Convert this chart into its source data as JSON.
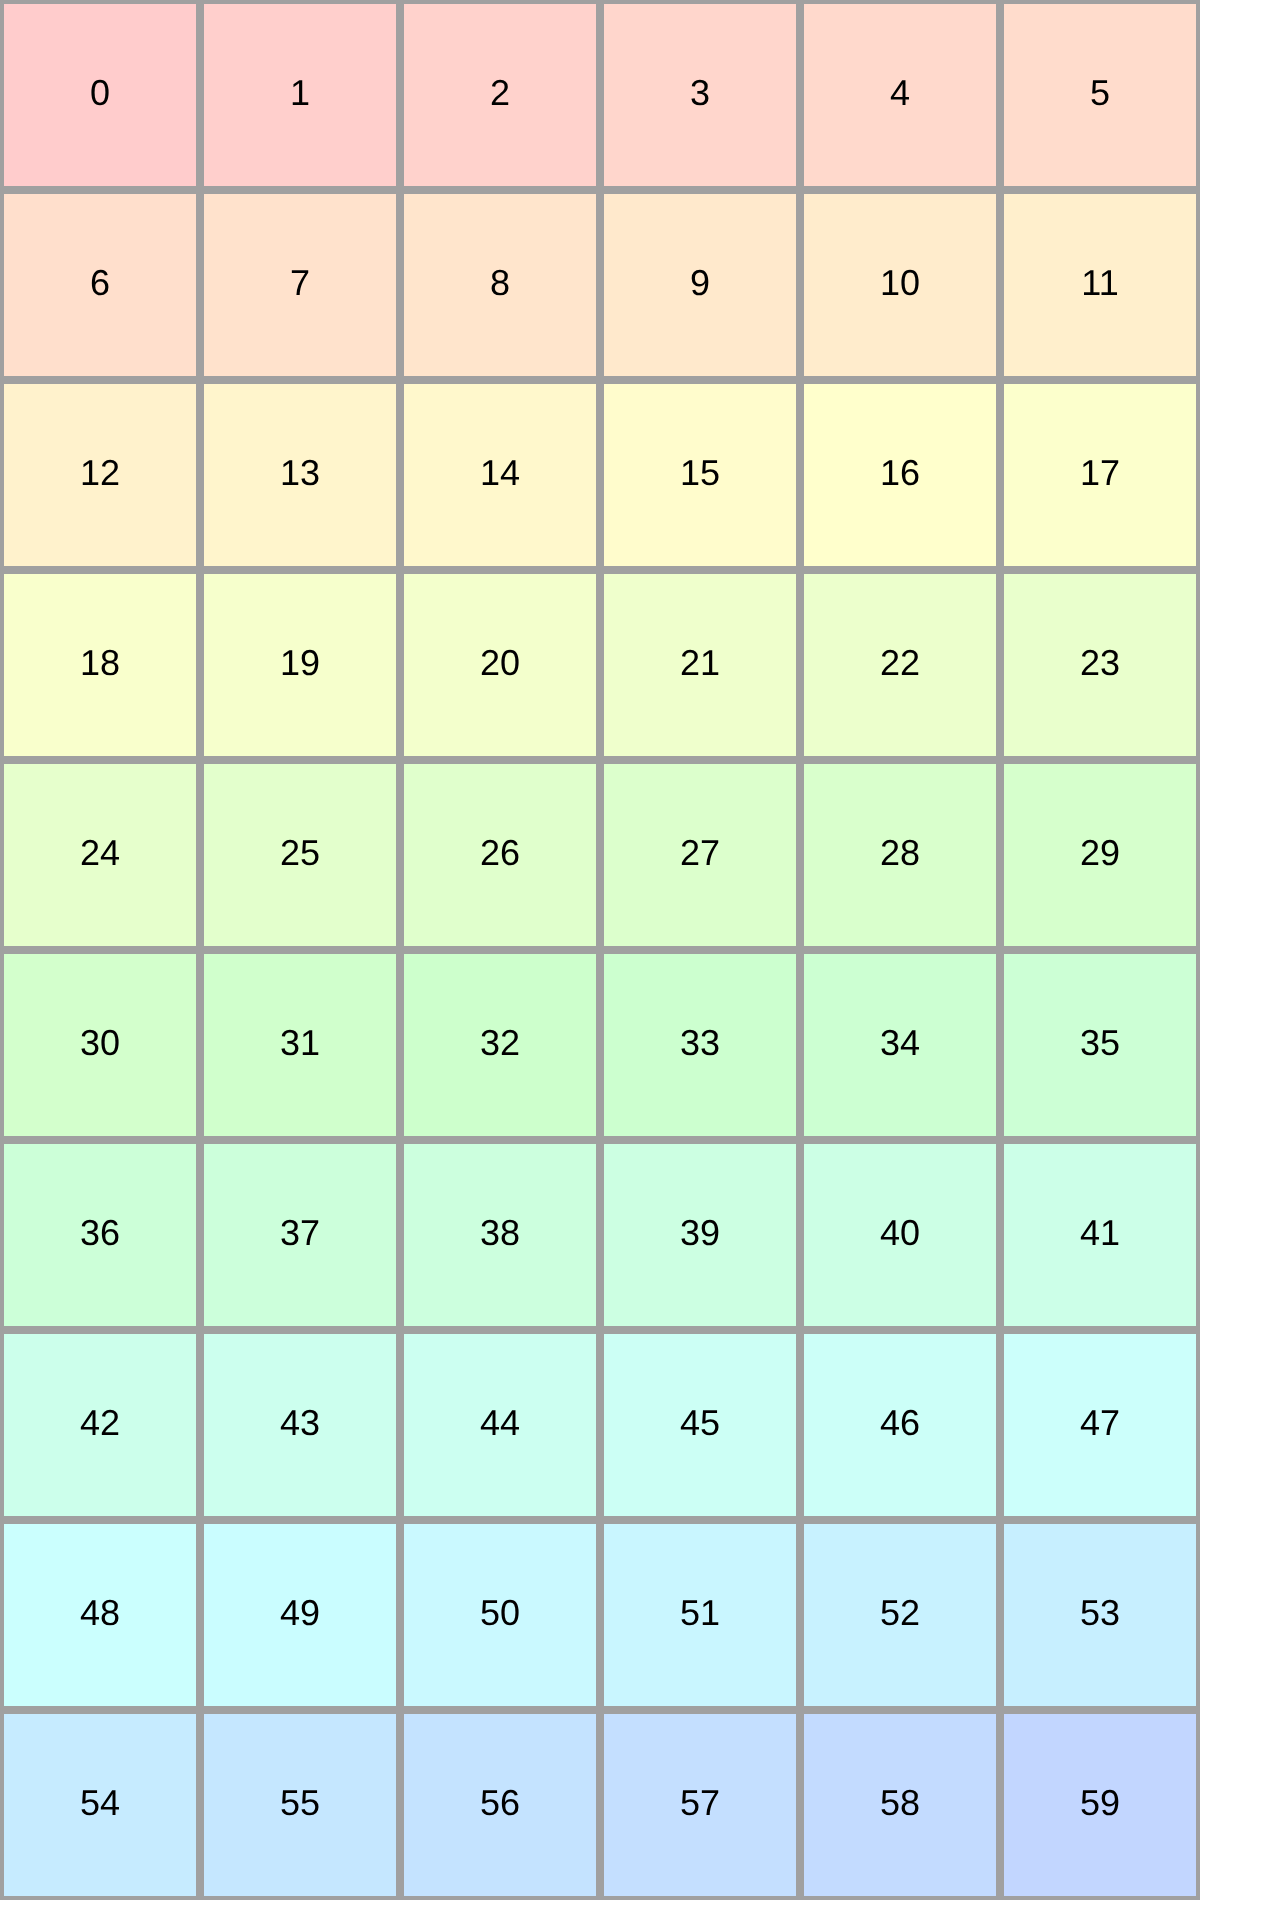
{
  "chart_data": {
    "type": "heatmap",
    "categories": [
      null,
      null,
      null,
      null,
      null,
      null
    ],
    "y_categories": [
      null,
      null,
      null,
      null,
      null,
      null,
      null,
      null,
      null,
      null
    ],
    "cells": [
      [
        0,
        1,
        2,
        3,
        4,
        5
      ],
      [
        6,
        7,
        8,
        9,
        10,
        11
      ],
      [
        12,
        13,
        14,
        15,
        16,
        17
      ],
      [
        18,
        19,
        20,
        21,
        22,
        23
      ],
      [
        24,
        25,
        26,
        27,
        28,
        29
      ],
      [
        30,
        31,
        32,
        33,
        34,
        35
      ],
      [
        36,
        37,
        38,
        39,
        40,
        41
      ],
      [
        42,
        43,
        44,
        45,
        46,
        47
      ],
      [
        48,
        49,
        50,
        51,
        52,
        53
      ],
      [
        54,
        55,
        56,
        57,
        58,
        59
      ]
    ],
    "data_labels": true,
    "tick_labels": false
  }
}
